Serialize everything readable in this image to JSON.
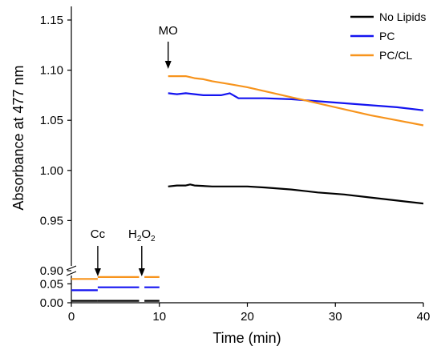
{
  "chart_data": {
    "type": "line",
    "xlabel": "Time (min)",
    "ylabel": "Absorbance at 477 nm",
    "xlim": [
      0,
      40
    ],
    "xticks": [
      0,
      10,
      20,
      30,
      40
    ],
    "axis_break": "y",
    "ylim_upper": [
      0.9,
      1.15
    ],
    "yticks_upper": [
      "0.90",
      "0.95",
      "1.00",
      "1.05",
      "1.10",
      "1.15"
    ],
    "ylim_lower": [
      0.0,
      0.07
    ],
    "yticks_lower": [
      "0.00",
      "0.05"
    ],
    "grid": false,
    "legend_position": "top-right",
    "series": [
      {
        "name": "No Lipids",
        "color": "#000000",
        "segments": [
          {
            "x": [
              0,
              3
            ],
            "y": [
              0.005,
              0.005
            ]
          },
          {
            "x": [
              3,
              7.7
            ],
            "y": [
              0.005,
              0.005
            ]
          },
          {
            "x": [
              8.3,
              10
            ],
            "y": [
              0.005,
              0.005
            ]
          },
          {
            "x": [
              11,
              12,
              13,
              13.5,
              14,
              16,
              18,
              20,
              22,
              25,
              28,
              31,
              34,
              37,
              40
            ],
            "y": [
              0.984,
              0.985,
              0.985,
              0.986,
              0.985,
              0.984,
              0.984,
              0.984,
              0.983,
              0.981,
              0.978,
              0.976,
              0.973,
              0.97,
              0.967
            ]
          }
        ]
      },
      {
        "name": "PC",
        "color": "#1414f0",
        "segments": [
          {
            "x": [
              0,
              3
            ],
            "y": [
              0.033,
              0.033
            ]
          },
          {
            "x": [
              3,
              7.7
            ],
            "y": [
              0.041,
              0.041
            ]
          },
          {
            "x": [
              8.3,
              10
            ],
            "y": [
              0.041,
              0.041
            ]
          },
          {
            "x": [
              11,
              12,
              13,
              14,
              15,
              16,
              17,
              18,
              19,
              22,
              25,
              28,
              31,
              34,
              37,
              40
            ],
            "y": [
              1.077,
              1.076,
              1.077,
              1.076,
              1.075,
              1.075,
              1.075,
              1.077,
              1.072,
              1.072,
              1.071,
              1.069,
              1.067,
              1.065,
              1.063,
              1.06
            ]
          }
        ]
      },
      {
        "name": "PC/CL",
        "color": "#f7941d",
        "segments": [
          {
            "x": [
              0,
              3
            ],
            "y": [
              0.063,
              0.063
            ]
          },
          {
            "x": [
              3,
              7.7
            ],
            "y": [
              0.068,
              0.068
            ]
          },
          {
            "x": [
              8.3,
              10
            ],
            "y": [
              0.068,
              0.068
            ]
          },
          {
            "x": [
              11,
              12,
              13,
              14,
              15,
              16,
              18,
              20,
              22,
              25,
              28,
              31,
              34,
              37,
              40
            ],
            "y": [
              1.094,
              1.094,
              1.094,
              1.092,
              1.091,
              1.089,
              1.086,
              1.083,
              1.079,
              1.073,
              1.067,
              1.061,
              1.055,
              1.05,
              1.045
            ]
          }
        ]
      }
    ],
    "annotations": [
      {
        "label": "MO",
        "x": 11
      },
      {
        "label": "Cc",
        "x": 3
      },
      {
        "label": "H",
        "sub": "2",
        "label2": "O",
        "sub2": "2",
        "x": 8
      }
    ]
  }
}
